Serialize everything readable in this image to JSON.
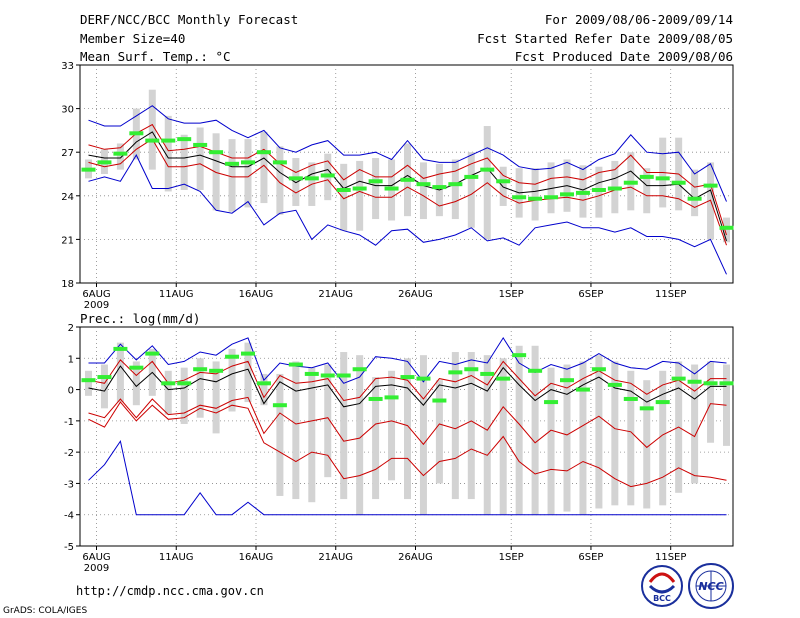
{
  "header": {
    "title": "DERF/NCC/BCC Monthly Forecast",
    "member_size": "Member Size=40",
    "variable": "Mean Surf. Temp.: °C",
    "period": "For 2009/08/06-2009/09/14",
    "start_date": "Fcst Started Refer Date 2009/08/05",
    "produced_date": "Fcst Produced Date 2009/08/06"
  },
  "prec_label": "Prec.: log(mm/d)",
  "footer": {
    "url": "http://cmdp.ncc.cma.gov.cn",
    "credit": "GrADS: COLA/IGES",
    "logo_bcc": "BCC",
    "logo_ncc": "NCC"
  },
  "colors": {
    "max_min": "#0000cc",
    "spread": "#cc0000",
    "mean": "#000000",
    "box": "#d3d3d3",
    "marker": "#33ee33",
    "grid": "#888888"
  },
  "chart_data": [
    {
      "type": "line",
      "title": "Mean Surf. Temp.: °C",
      "x_tick_labels": [
        "6AUG",
        "11AUG",
        "16AUG",
        "21AUG",
        "26AUG",
        "1SEP",
        "6SEP",
        "11SEP"
      ],
      "x_tick_days": [
        1,
        6,
        11,
        16,
        21,
        27,
        32,
        37
      ],
      "year_label": "2009",
      "ylim": [
        18,
        33
      ],
      "yticks": [
        18,
        21,
        24,
        27,
        30,
        33
      ],
      "series": [
        {
          "name": "max",
          "values": [
            29.2,
            28.8,
            28.8,
            29.5,
            30.2,
            29.3,
            29.0,
            29.0,
            29.2,
            28.5,
            28.0,
            28.5,
            27.3,
            27.0,
            27.5,
            27.8,
            26.8,
            26.8,
            27.0,
            26.5,
            27.8,
            26.5,
            26.3,
            26.3,
            26.8,
            27.3,
            26.8,
            26.0,
            25.8,
            25.9,
            26.3,
            25.8,
            26.5,
            26.9,
            28.2,
            27.0,
            26.9,
            27.0,
            25.5,
            26.2,
            23.6
          ]
        },
        {
          "name": "upper",
          "values": [
            27.5,
            27.2,
            27.3,
            28.3,
            28.9,
            27.1,
            27.2,
            27.4,
            27.0,
            26.6,
            26.6,
            27.2,
            26.2,
            25.6,
            26.1,
            26.4,
            25.1,
            25.8,
            25.3,
            25.3,
            26.1,
            25.2,
            25.5,
            25.7,
            26.2,
            26.6,
            25.4,
            24.9,
            24.8,
            25.2,
            25.3,
            25.1,
            25.6,
            25.8,
            26.8,
            25.6,
            25.6,
            25.5,
            24.6,
            24.8,
            21.3
          ]
        },
        {
          "name": "mean",
          "values": [
            26.8,
            26.6,
            26.6,
            27.7,
            28.4,
            26.6,
            26.6,
            26.8,
            26.4,
            26.0,
            26.0,
            26.6,
            25.6,
            24.9,
            25.5,
            25.8,
            24.5,
            25.0,
            24.7,
            24.7,
            25.4,
            24.7,
            24.4,
            24.8,
            25.4,
            25.9,
            24.6,
            24.2,
            24.3,
            24.5,
            24.7,
            24.4,
            24.9,
            25.2,
            25.7,
            24.7,
            24.7,
            24.8,
            23.8,
            24.4,
            20.9
          ]
        },
        {
          "name": "lower",
          "values": [
            26.3,
            26.0,
            26.2,
            27.2,
            27.9,
            26.0,
            26.0,
            26.2,
            25.6,
            25.3,
            25.3,
            26.1,
            24.9,
            24.2,
            24.8,
            25.1,
            23.8,
            24.3,
            23.9,
            23.9,
            24.6,
            24.0,
            23.3,
            23.6,
            24.1,
            24.9,
            24.0,
            23.5,
            23.7,
            23.8,
            23.9,
            23.7,
            24.0,
            24.4,
            24.6,
            24.0,
            24.0,
            23.8,
            23.2,
            23.7,
            20.6
          ]
        },
        {
          "name": "min",
          "values": [
            25.0,
            25.3,
            25.0,
            26.8,
            24.5,
            24.5,
            24.8,
            24.3,
            23.0,
            22.8,
            23.6,
            22.0,
            22.8,
            23.0,
            21.0,
            22.0,
            21.6,
            21.3,
            20.6,
            21.6,
            21.7,
            20.8,
            21.0,
            21.3,
            21.8,
            20.9,
            21.1,
            20.6,
            21.8,
            22.0,
            22.2,
            21.8,
            21.8,
            21.5,
            21.8,
            21.2,
            21.2,
            21.0,
            20.5,
            21.0,
            18.6
          ]
        },
        {
          "name": "forecast",
          "values": [
            25.8,
            26.3,
            26.9,
            28.3,
            27.8,
            27.8,
            27.9,
            27.5,
            27.0,
            26.2,
            26.3,
            27.0,
            26.3,
            25.2,
            25.2,
            25.4,
            24.4,
            24.5,
            25.0,
            24.5,
            25.1,
            24.8,
            24.6,
            24.8,
            25.3,
            25.8,
            25.0,
            23.9,
            23.8,
            23.9,
            24.1,
            24.2,
            24.4,
            24.5,
            24.9,
            25.3,
            25.2,
            24.9,
            23.8,
            24.7,
            21.8
          ]
        },
        {
          "name": "box_top",
          "values": [
            26.5,
            27.2,
            27.6,
            30.0,
            31.3,
            29.5,
            28.2,
            28.7,
            28.3,
            27.9,
            27.9,
            28.4,
            27.4,
            26.6,
            26.3,
            26.9,
            26.2,
            26.4,
            26.6,
            26.5,
            27.6,
            26.3,
            26.2,
            26.5,
            27.0,
            28.8,
            26.0,
            25.9,
            25.9,
            26.3,
            26.5,
            26.1,
            26.0,
            26.4,
            27.0,
            25.9,
            28.0,
            28.0,
            25.8,
            26.3,
            22.5
          ]
        },
        {
          "name": "box_bottom",
          "values": [
            25.2,
            25.5,
            25.8,
            26.5,
            25.8,
            24.3,
            24.4,
            24.4,
            23.0,
            22.9,
            23.2,
            23.5,
            22.7,
            23.3,
            23.3,
            23.7,
            21.6,
            21.6,
            22.4,
            22.3,
            22.6,
            22.4,
            22.6,
            22.4,
            21.8,
            21.0,
            23.3,
            22.5,
            22.3,
            22.8,
            22.9,
            22.5,
            22.5,
            22.8,
            23.0,
            22.8,
            23.2,
            23.0,
            22.6,
            21.0,
            20.8
          ]
        }
      ]
    },
    {
      "type": "line",
      "title": "Prec.: log(mm/d)",
      "x_tick_labels": [
        "6AUG",
        "11AUG",
        "16AUG",
        "21AUG",
        "26AUG",
        "1SEP",
        "6SEP",
        "11SEP"
      ],
      "x_tick_days": [
        1,
        6,
        11,
        16,
        21,
        27,
        32,
        37
      ],
      "year_label": "2009",
      "ylim": [
        -5,
        2
      ],
      "yticks": [
        -5,
        -4,
        -3,
        -2,
        -1,
        0,
        1,
        2
      ],
      "series": [
        {
          "name": "max",
          "values": [
            0.85,
            0.85,
            1.45,
            0.95,
            1.4,
            0.8,
            0.9,
            1.2,
            1.1,
            1.45,
            1.65,
            0.3,
            0.85,
            0.75,
            0.7,
            0.85,
            0.2,
            0.4,
            1.05,
            1.0,
            0.9,
            0.25,
            0.9,
            0.8,
            0.95,
            0.85,
            1.65,
            0.85,
            0.55,
            0.8,
            0.65,
            0.85,
            1.15,
            0.85,
            0.7,
            0.65,
            0.9,
            0.85,
            0.5,
            0.9,
            0.85
          ]
        },
        {
          "name": "upper",
          "values": [
            0.3,
            0.2,
            0.95,
            0.45,
            0.9,
            0.2,
            0.3,
            0.55,
            0.5,
            0.75,
            0.9,
            -0.25,
            0.45,
            0.2,
            0.25,
            0.35,
            -0.35,
            -0.25,
            0.35,
            0.4,
            0.3,
            -0.3,
            0.35,
            0.25,
            0.45,
            0.15,
            0.9,
            0.35,
            -0.2,
            0.2,
            0.05,
            0.35,
            0.6,
            0.3,
            0.2,
            -0.15,
            0.15,
            0.3,
            -0.05,
            0.35,
            0.35
          ]
        },
        {
          "name": "mean",
          "values": [
            0.05,
            -0.05,
            0.75,
            0.1,
            0.55,
            0.0,
            0.05,
            0.35,
            0.25,
            0.5,
            0.65,
            -0.45,
            0.25,
            -0.05,
            0.05,
            0.15,
            -0.55,
            -0.45,
            0.1,
            0.15,
            0.05,
            -0.5,
            0.15,
            0.05,
            0.2,
            -0.05,
            0.7,
            0.15,
            -0.35,
            0.0,
            -0.15,
            0.15,
            0.4,
            0.05,
            -0.05,
            -0.4,
            -0.15,
            0.05,
            -0.3,
            0.1,
            0.1
          ]
        },
        {
          "name": "lower",
          "values": [
            -0.75,
            -0.9,
            -0.3,
            -0.9,
            -0.3,
            -0.8,
            -0.75,
            -0.5,
            -0.6,
            -0.35,
            -0.25,
            -1.4,
            -0.75,
            -1.1,
            -1.0,
            -0.9,
            -1.65,
            -1.55,
            -1.1,
            -1.0,
            -1.15,
            -1.75,
            -1.1,
            -1.25,
            -1.0,
            -1.3,
            -0.55,
            -1.1,
            -1.7,
            -1.3,
            -1.45,
            -1.15,
            -0.85,
            -1.25,
            -1.35,
            -1.85,
            -1.45,
            -1.2,
            -1.5,
            -0.45,
            -0.5
          ]
        },
        {
          "name": "min",
          "values": [
            -2.9,
            -2.4,
            -1.65,
            -4.0,
            -4.0,
            -4.0,
            -4.0,
            -3.3,
            -4.0,
            -4.0,
            -3.6,
            -4.0,
            -4.0,
            -4.0,
            -4.0,
            -4.0,
            -4.0,
            -4.0,
            -4.0,
            -4.0,
            -4.0,
            -4.0,
            -4.0,
            -4.0,
            -4.0,
            -4.0,
            -4.0,
            -4.0,
            -4.0,
            -4.0,
            -4.0,
            -4.0,
            -4.0,
            -4.0,
            -4.0,
            -4.0,
            -4.0,
            -4.0,
            -4.0,
            -4.0,
            -4.0
          ]
        },
        {
          "name": "lower_outer",
          "values": [
            -0.95,
            -1.2,
            -0.4,
            -1.0,
            -0.5,
            -0.95,
            -0.9,
            -0.6,
            -0.75,
            -0.5,
            -0.6,
            -1.7,
            -2.0,
            -2.3,
            -2.0,
            -2.1,
            -2.85,
            -2.75,
            -2.55,
            -2.2,
            -2.2,
            -2.75,
            -2.3,
            -2.2,
            -1.9,
            -2.1,
            -1.5,
            -2.3,
            -2.7,
            -2.55,
            -2.6,
            -2.3,
            -2.5,
            -2.85,
            -3.1,
            -3.0,
            -2.8,
            -2.5,
            -2.75,
            -2.8,
            -2.9
          ]
        },
        {
          "name": "forecast",
          "values": [
            0.3,
            0.4,
            1.3,
            0.7,
            1.15,
            0.2,
            0.2,
            0.65,
            0.6,
            1.05,
            1.15,
            0.2,
            -0.5,
            0.8,
            0.5,
            0.45,
            0.45,
            0.65,
            -0.3,
            -0.25,
            0.4,
            0.35,
            -0.35,
            0.55,
            0.65,
            0.5,
            0.35,
            1.1,
            0.6,
            -0.4,
            0.3,
            0.0,
            0.65,
            0.15,
            -0.3,
            -0.6,
            -0.4,
            0.35,
            0.25,
            0.2,
            0.2
          ]
        },
        {
          "name": "box_top",
          "values": [
            0.6,
            0.8,
            1.5,
            0.9,
            1.3,
            0.6,
            0.7,
            1.0,
            0.9,
            1.3,
            1.5,
            0.5,
            0.5,
            0.9,
            0.7,
            0.8,
            1.2,
            1.1,
            0.4,
            0.6,
            1.0,
            1.1,
            0.3,
            1.2,
            1.2,
            1.1,
            1.0,
            1.4,
            1.4,
            0.7,
            0.8,
            0.9,
            1.1,
            0.9,
            0.6,
            0.3,
            0.6,
            0.9,
            0.8,
            0.9,
            0.8
          ]
        },
        {
          "name": "box_bottom",
          "values": [
            -0.2,
            -0.6,
            -0.4,
            -0.5,
            -0.2,
            -0.8,
            -1.1,
            -0.9,
            -1.4,
            -0.7,
            -0.4,
            -0.5,
            -3.4,
            -3.5,
            -3.6,
            -2.8,
            -3.5,
            -4.0,
            -3.5,
            -2.9,
            -3.5,
            -4.0,
            -3.0,
            -3.5,
            -3.5,
            -4.0,
            -4.0,
            -4.0,
            -4.0,
            -4.0,
            -3.9,
            -4.0,
            -3.8,
            -3.7,
            -3.7,
            -3.8,
            -3.7,
            -3.3,
            -3.0,
            -1.7,
            -1.8
          ]
        }
      ]
    }
  ]
}
